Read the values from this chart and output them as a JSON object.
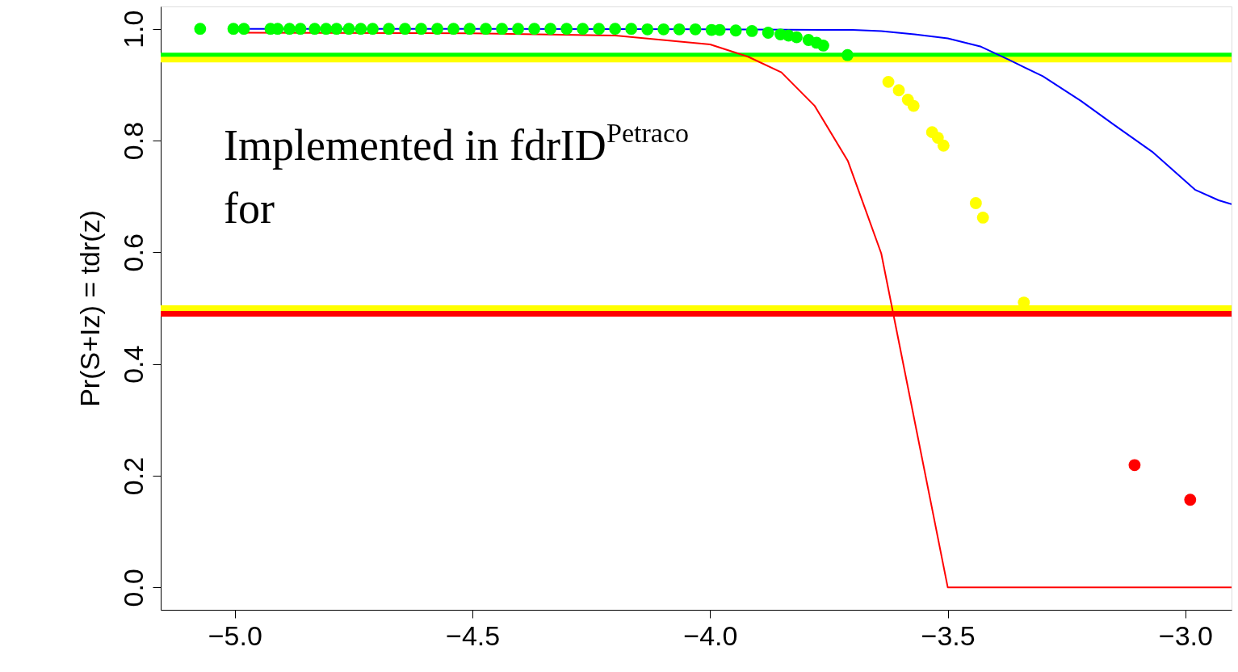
{
  "chart_data": {
    "type": "scatter",
    "ylabel": "Pr(S+Iz) = tdr(z)",
    "annotations": [
      "Implemented in fdrID$^{Petraco}$",
      "for"
    ],
    "xlim": [
      -5.156,
      -2.903
    ],
    "ylim": [
      -0.04,
      1.04
    ],
    "xticks": [
      {
        "value": -5,
        "label": "−5.0"
      },
      -4.5,
      {
        "value": -4,
        "label": "−4.0"
      },
      -3.5,
      {
        "value": -3,
        "label": "−3.0"
      }
    ],
    "yticks": [
      {
        "value": 0,
        "label": "0.0"
      },
      0.2,
      0.4,
      0.6,
      0.8,
      {
        "value": 1,
        "label": "1.0"
      }
    ],
    "grid": false,
    "ref_lines": [
      {
        "axis": "y",
        "value": 0.945,
        "color": "#ffff00"
      },
      {
        "axis": "y",
        "value": 0.952,
        "color": "#00ff00"
      },
      {
        "axis": "y",
        "value": 0.5,
        "color": "#ffff00"
      },
      {
        "axis": "y",
        "value": 0.49,
        "color": "#ff0000"
      }
    ],
    "series": [
      {
        "type": "line",
        "color": "#0000ff",
        "x": [
          -5.0,
          -4.5,
          -4.0,
          -3.7,
          -3.64,
          -3.57,
          -3.5,
          -3.43,
          -3.37,
          -3.3,
          -3.22,
          -3.15,
          -3.07,
          -2.98,
          -2.93,
          -2.903
        ],
        "values": [
          1.0,
          1.0,
          0.999,
          0.998,
          0.996,
          0.99,
          0.983,
          0.968,
          0.944,
          0.915,
          0.871,
          0.828,
          0.78,
          0.712,
          0.693,
          0.686
        ]
      },
      {
        "type": "line",
        "color": "#ff0000",
        "x": [
          -4.98,
          -4.5,
          -4.2,
          -4.0,
          -3.92,
          -3.85,
          -3.78,
          -3.71,
          -3.64,
          -3.5,
          -2.903
        ],
        "values": [
          0.993,
          0.992,
          0.988,
          0.972,
          0.95,
          0.922,
          0.862,
          0.763,
          0.598,
          0.0,
          0.0
        ]
      },
      {
        "marker": "circle",
        "color": "#00ff00",
        "x": [
          -5.073,
          -5.003,
          -4.981,
          -4.925,
          -4.91,
          -4.885,
          -4.862,
          -4.832,
          -4.808,
          -4.786,
          -4.76,
          -4.735,
          -4.71,
          -4.676,
          -4.642,
          -4.608,
          -4.574,
          -4.54,
          -4.506,
          -4.472,
          -4.438,
          -4.404,
          -4.37,
          -4.336,
          -4.302,
          -4.268,
          -4.234,
          -4.2,
          -4.166,
          -4.132,
          -4.098,
          -4.065,
          -4.031,
          -3.997,
          -3.98,
          -3.946,
          -3.912,
          -3.878,
          -3.852,
          -3.835,
          -3.818,
          -3.793,
          -3.776,
          -3.762,
          -3.711
        ],
        "values": [
          1.0,
          1.0,
          1.0,
          1.0,
          1.0,
          1.0,
          1.0,
          1.0,
          1.0,
          1.0,
          1.0,
          1.0,
          1.0,
          1.0,
          1.0,
          1.0,
          1.0,
          1.0,
          1.0,
          1.0,
          1.0,
          1.0,
          1.0,
          1.0,
          1.0,
          1.0,
          1.0,
          1.0,
          1.0,
          0.999,
          0.999,
          0.999,
          0.999,
          0.998,
          0.998,
          0.997,
          0.996,
          0.993,
          0.99,
          0.988,
          0.985,
          0.98,
          0.975,
          0.97,
          0.953
        ]
      },
      {
        "marker": "circle",
        "color": "#ffff00",
        "x": [
          -3.625,
          -3.603,
          -3.584,
          -3.572,
          -3.533,
          -3.521,
          -3.509,
          -3.441,
          -3.426,
          -3.34
        ],
        "values": [
          0.905,
          0.89,
          0.873,
          0.862,
          0.815,
          0.805,
          0.791,
          0.688,
          0.662,
          0.51
        ]
      },
      {
        "marker": "circle",
        "color": "#ff0000",
        "x": [
          -3.107,
          -2.99
        ],
        "values": [
          0.219,
          0.157
        ]
      }
    ]
  }
}
